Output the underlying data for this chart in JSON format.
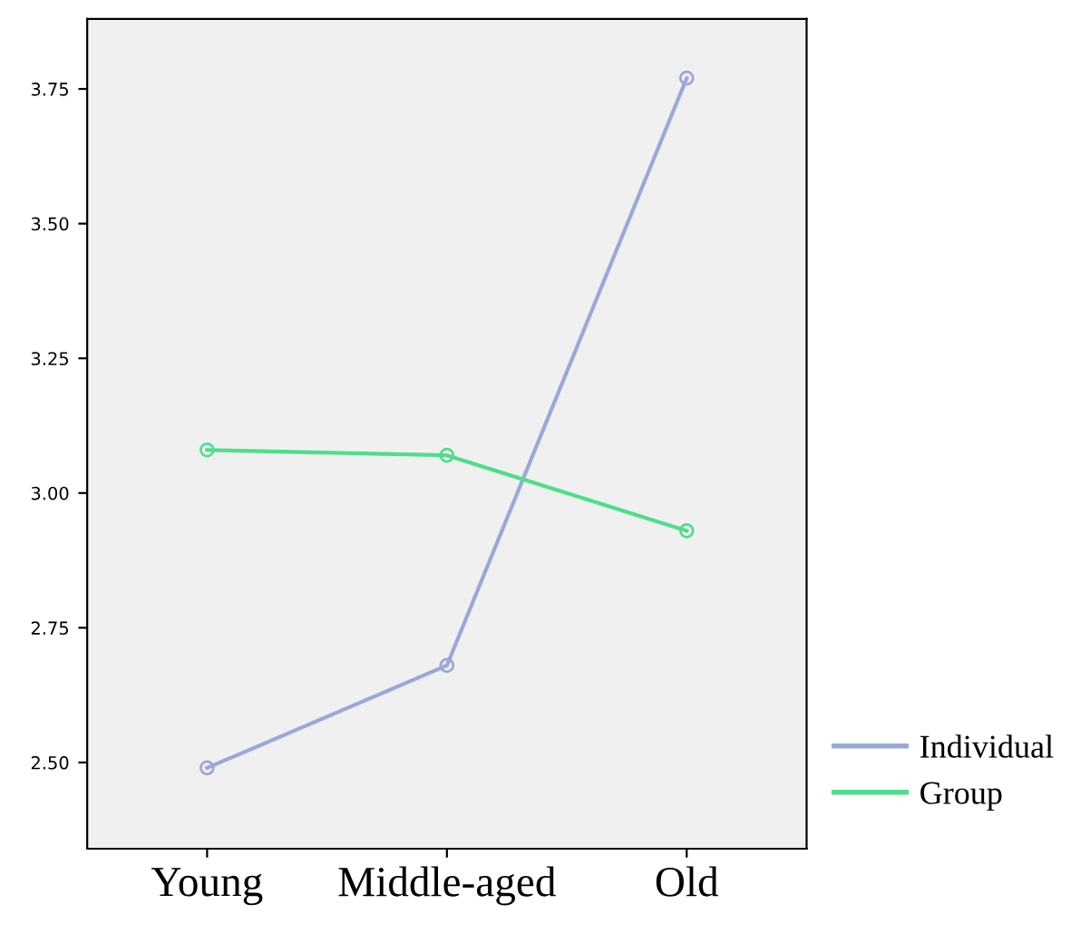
{
  "chart_data": {
    "type": "line",
    "categories": [
      "Young",
      "Middle-aged",
      "Old"
    ],
    "series": [
      {
        "name": "Individual",
        "color": "#9aa8d8",
        "values": [
          2.49,
          2.68,
          3.77
        ]
      },
      {
        "name": "Group",
        "color": "#4ede8c",
        "values": [
          3.08,
          3.07,
          2.93
        ]
      }
    ],
    "ylim": [
      2.34,
      3.88
    ],
    "yticks": [
      {
        "value": 2.5,
        "label": "2.50"
      },
      {
        "value": 2.75,
        "label": "2.75"
      },
      {
        "value": 3.0,
        "label": "3.00"
      },
      {
        "value": 3.25,
        "label": "3.25"
      },
      {
        "value": 3.5,
        "label": "3.50"
      },
      {
        "value": 3.75,
        "label": "3.75"
      }
    ],
    "marker": "circle",
    "line_style": "solid",
    "legend": "bottom right",
    "grid": false
  }
}
